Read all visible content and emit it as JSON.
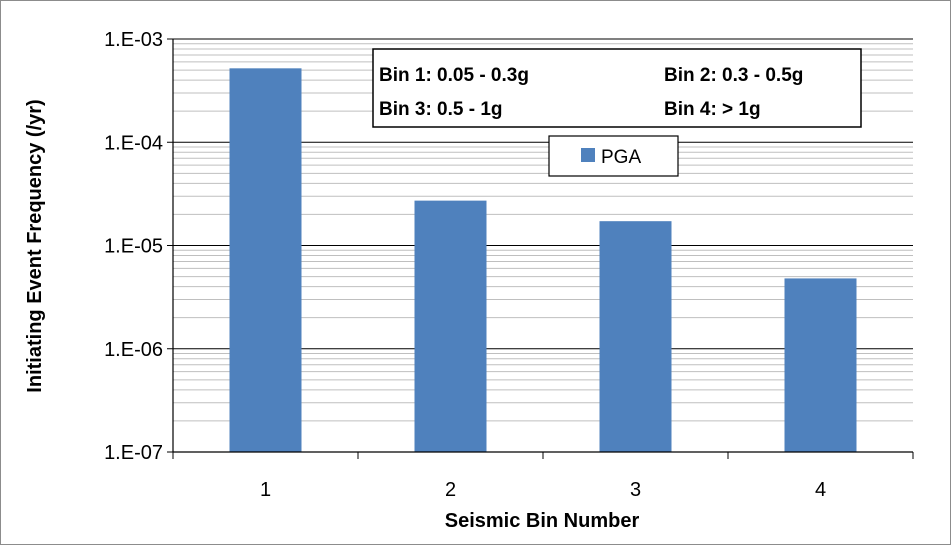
{
  "chart_data": {
    "type": "bar",
    "categories": [
      "1",
      "2",
      "3",
      "4"
    ],
    "series": [
      {
        "name": "PGA",
        "values": [
          0.00052,
          2.72e-05,
          1.72e-05,
          4.8e-06
        ]
      }
    ],
    "xlabel": "Seismic Bin Number",
    "ylabel": "Initiating Event Frequency (/yr)",
    "yscale": "log",
    "ylim": [
      1e-07,
      0.001
    ],
    "yticks": [
      "1.E-07",
      "1.E-06",
      "1.E-05",
      "1.E-04",
      "1.E-03"
    ],
    "grid": "major and minor horizontal",
    "legend": "top-center",
    "bar_color": "#4f81bd",
    "bin_notes": [
      "Bin 1: 0.05 - 0.3g",
      "Bin 2: 0.3 - 0.5g",
      "Bin 3: 0.5 - 1g",
      "Bin 4: > 1g"
    ]
  }
}
